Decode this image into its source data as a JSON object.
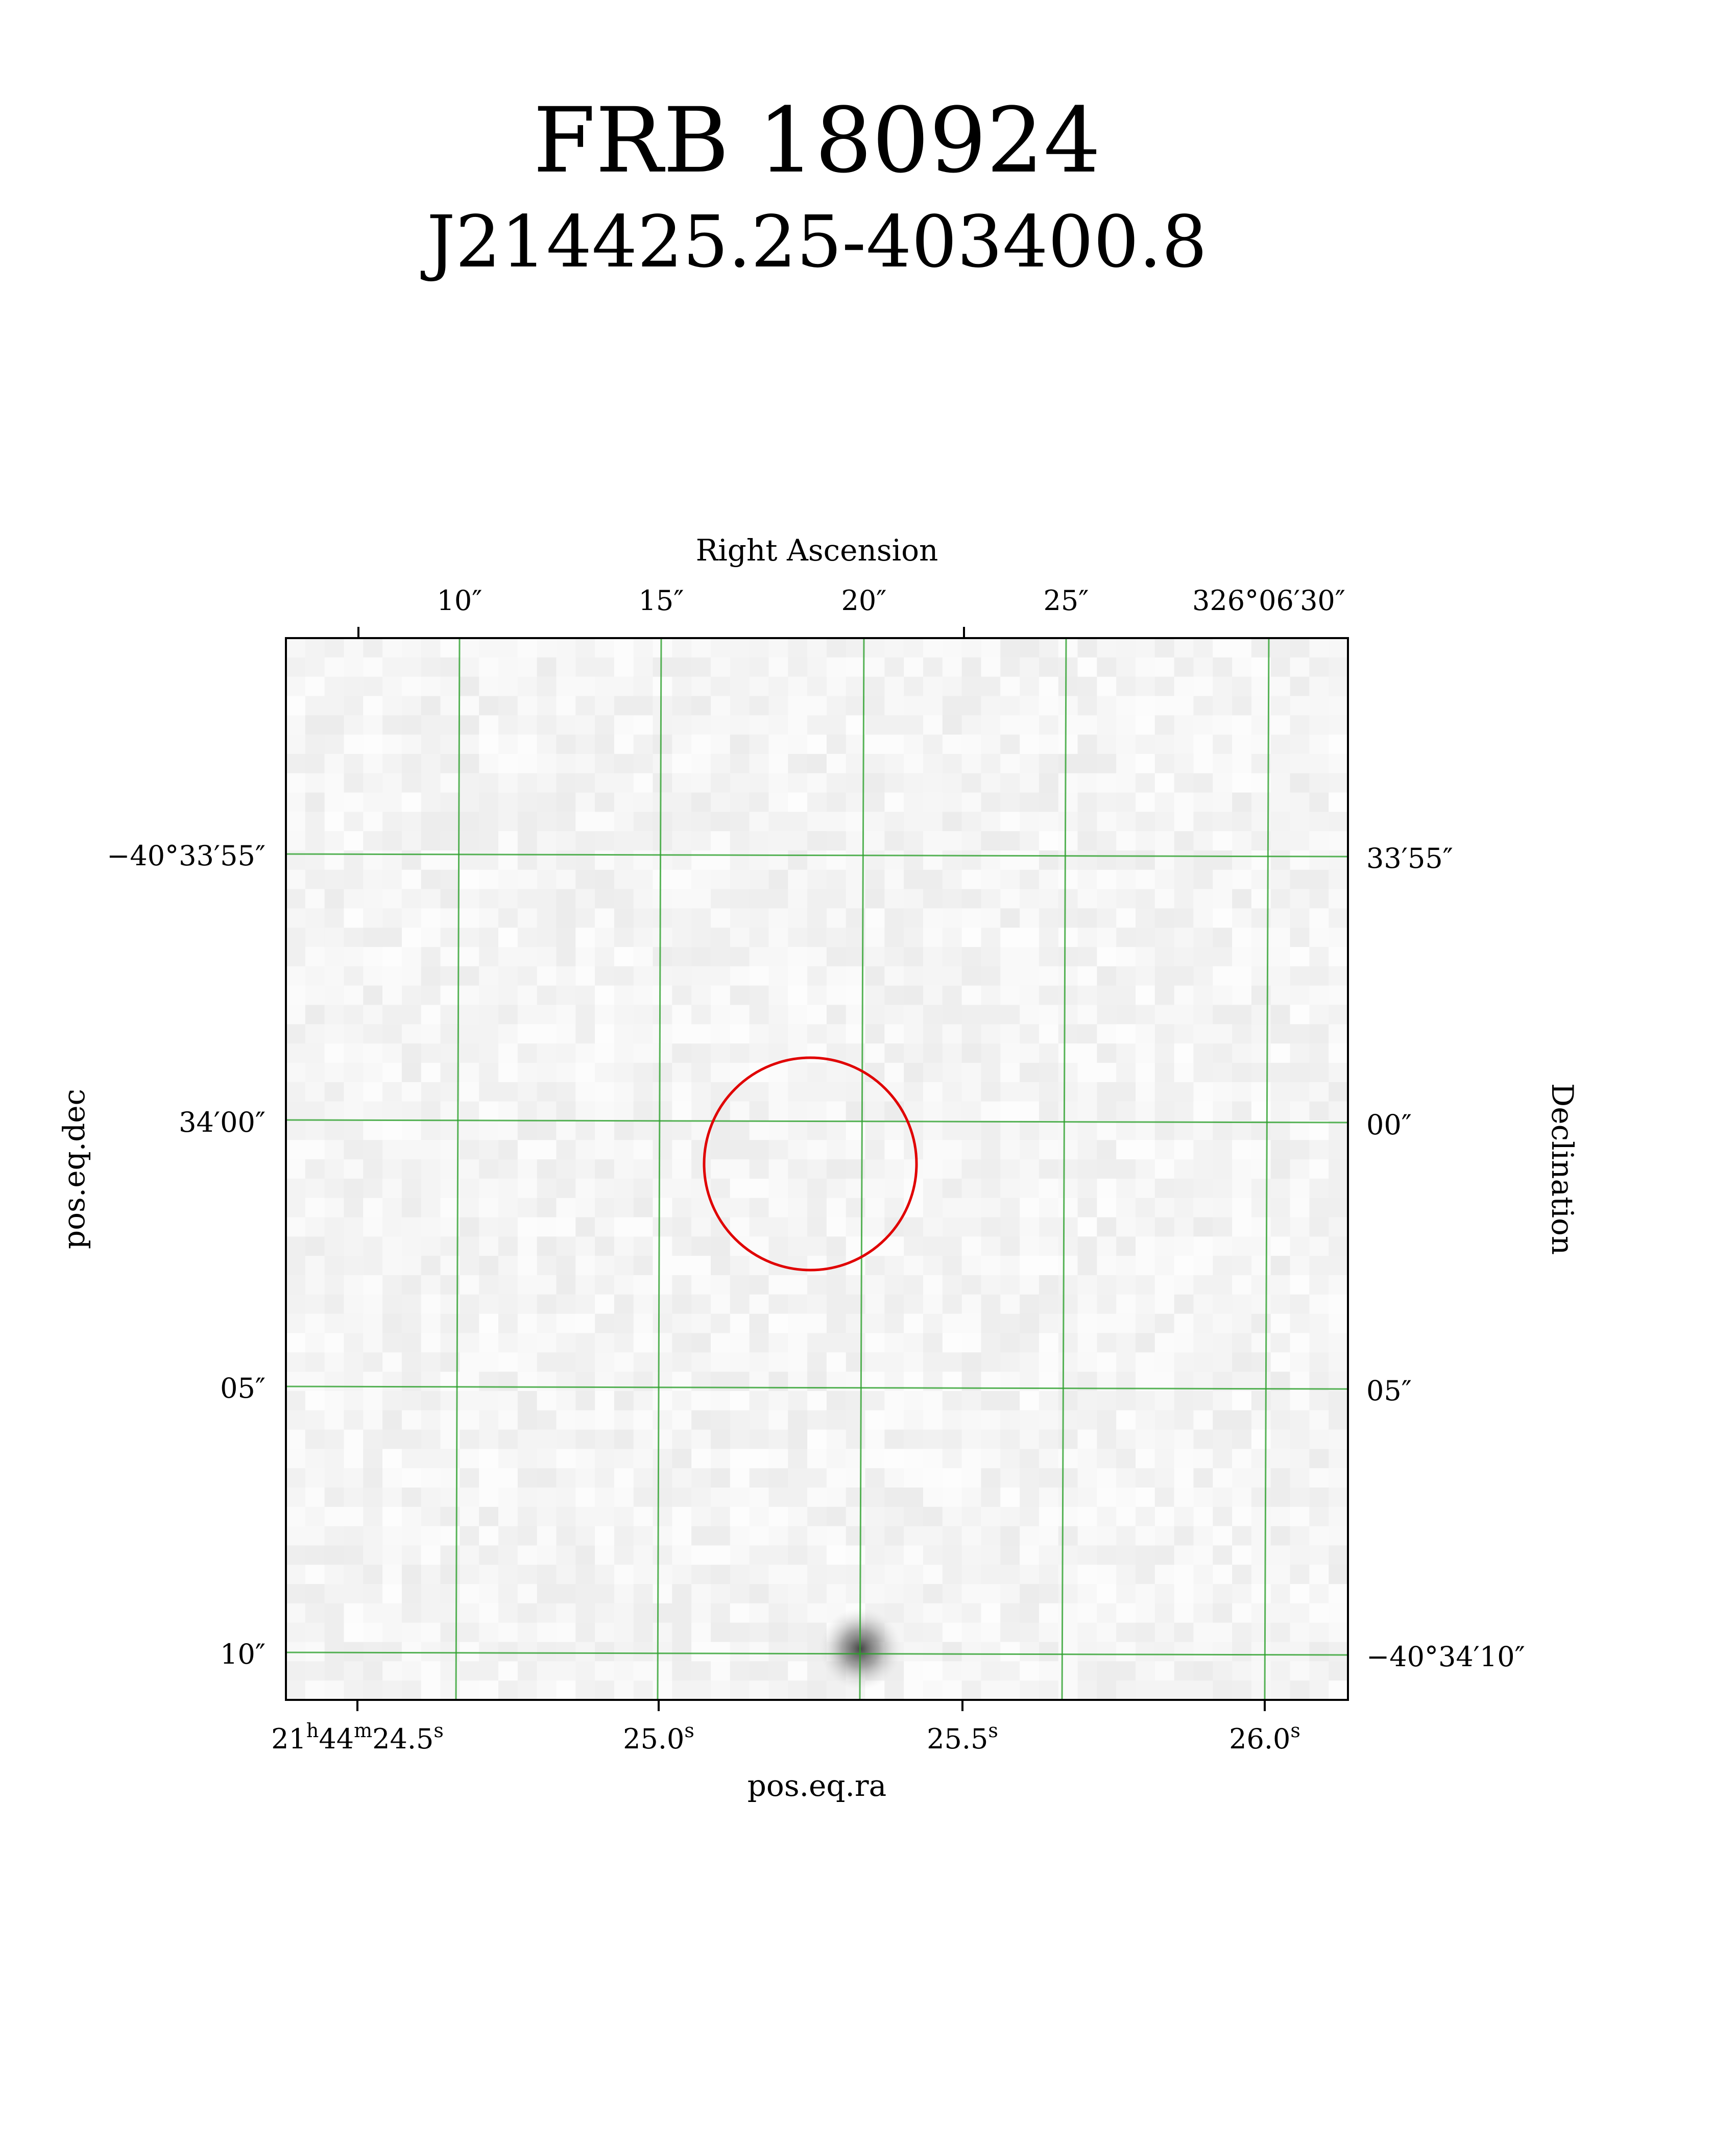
{
  "title": "FRB 180924",
  "subtitle": "J214425.25-403400.8",
  "chart_data": {
    "type": "heatmap",
    "description_free": true,
    "top_axis_label": "Right Ascension",
    "bottom_axis_label": "pos.eq.ra",
    "left_axis_label": "pos.eq.dec",
    "right_axis_label": "Declination",
    "top_ticks": [
      "10″",
      "15″",
      "20″",
      "25″",
      "326°06′30″"
    ],
    "bottom_ticks": [
      {
        "h": "21",
        "m": "44",
        "s": "24.5",
        "full": true
      },
      {
        "s": "25.0"
      },
      {
        "s": "25.5"
      },
      {
        "s": "26.0"
      }
    ],
    "left_ticks": [
      "−40°33′55″",
      "34′00″",
      "05″",
      "10″"
    ],
    "right_ticks": [
      "33′55″",
      "00″",
      "05″",
      "−40°34′10″"
    ],
    "grid": true,
    "grid_color": "#2ca02c",
    "circle_color": "#e00000",
    "source_color": "#3a3a3a",
    "colormap": "gray_r"
  }
}
